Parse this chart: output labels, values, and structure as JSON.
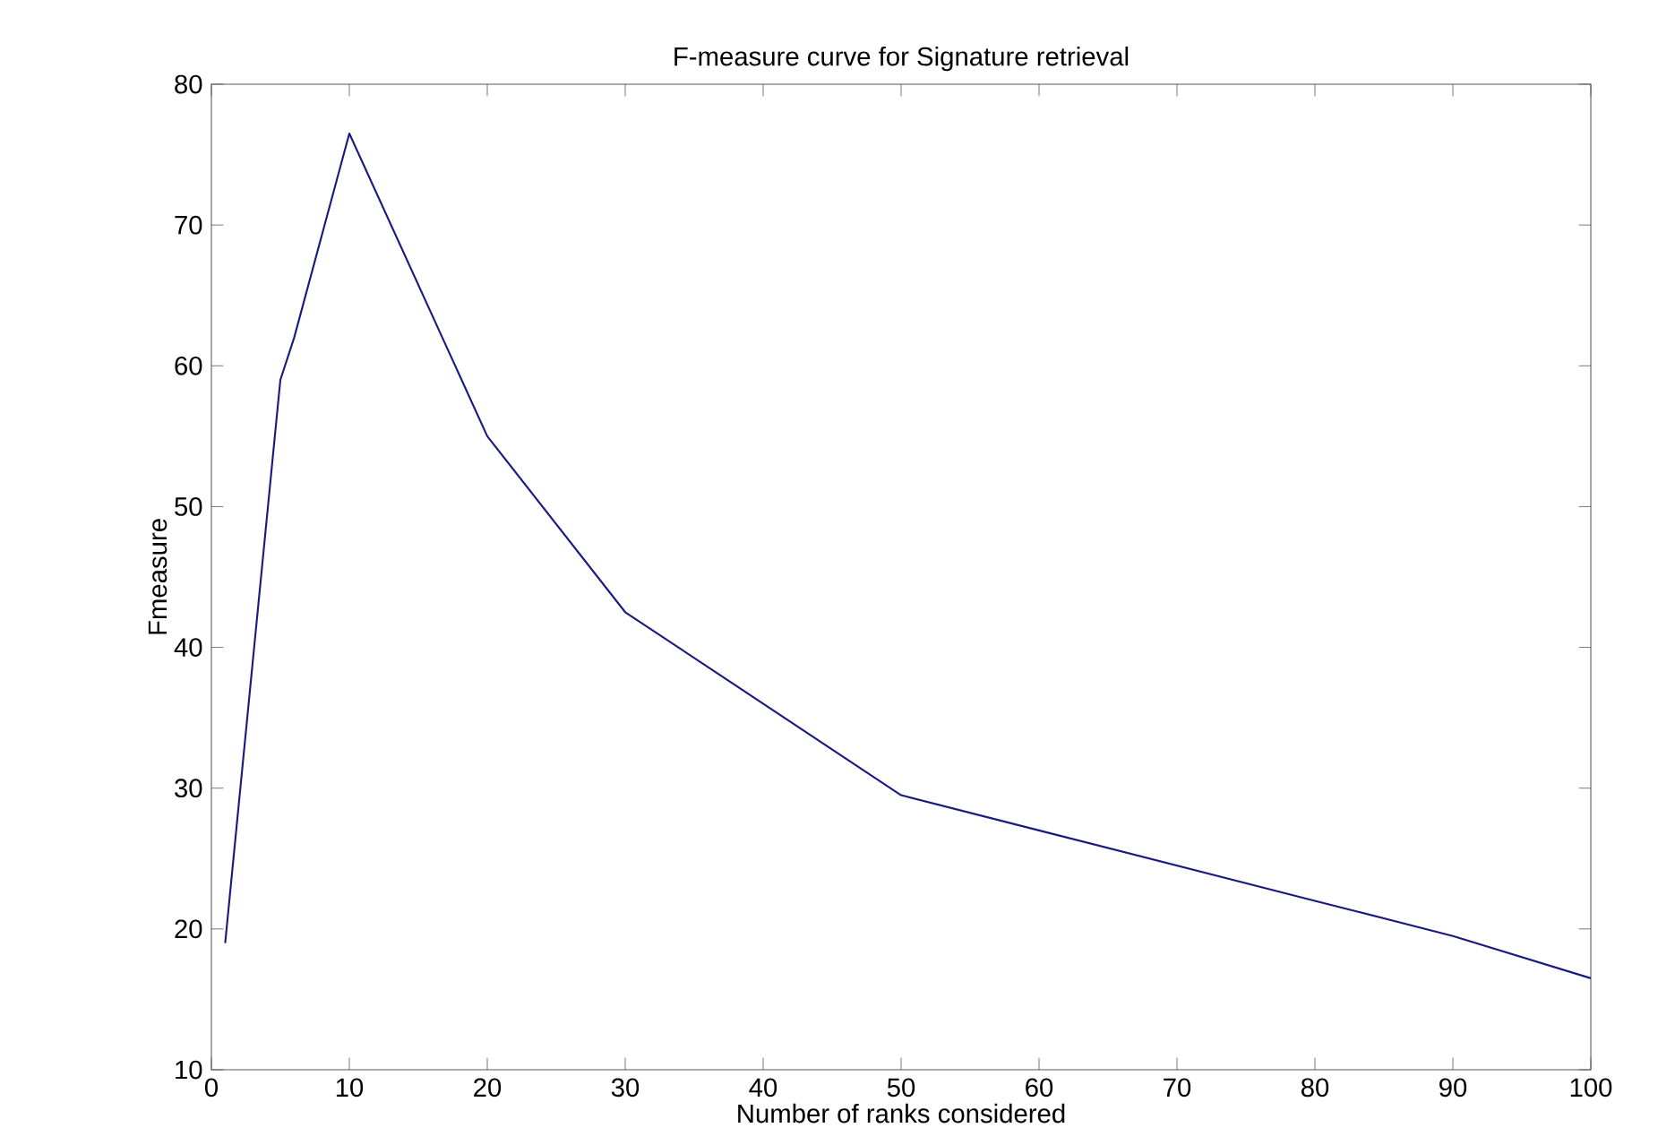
{
  "chart_data": {
    "type": "line",
    "title": "F-measure curve for Signature retrieval",
    "xlabel": "Number of ranks considered",
    "ylabel": "Fmeasure",
    "x": [
      1,
      5,
      6,
      10,
      20,
      30,
      40,
      50,
      60,
      70,
      80,
      90,
      100
    ],
    "series": [
      {
        "color": "#1a1a80",
        "values": [
          19,
          59,
          62,
          76.5,
          55,
          42.5,
          36,
          29.5,
          27,
          24.5,
          22,
          19.5,
          16.5
        ]
      }
    ],
    "xlim": [
      0,
      100
    ],
    "ylim": [
      10,
      80
    ],
    "xticks": [
      0,
      10,
      20,
      30,
      40,
      50,
      60,
      70,
      80,
      90,
      100
    ],
    "yticks": [
      10,
      20,
      30,
      40,
      50,
      60,
      70,
      80
    ],
    "grid": false,
    "marker": "none",
    "line_style": "solid"
  }
}
